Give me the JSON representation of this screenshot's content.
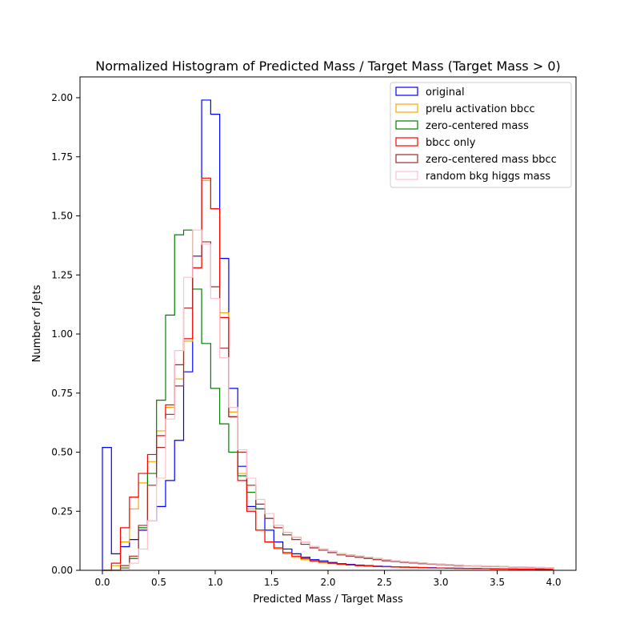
{
  "chart_data": {
    "type": "histogram",
    "title": "Normalized Histogram of Predicted Mass / Target Mass (Target Mass > 0)",
    "xlabel": "Predicted Mass / Target Mass",
    "ylabel": "Number of Jets",
    "xlim": [
      -0.18,
      4.2
    ],
    "ylim": [
      0,
      2.09
    ],
    "xticks": [
      "0.0",
      "0.5",
      "1.0",
      "1.5",
      "2.0",
      "2.5",
      "3.0",
      "3.5",
      "4.0"
    ],
    "yticks": [
      "0.00",
      "0.25",
      "0.50",
      "0.75",
      "1.00",
      "1.25",
      "1.50",
      "1.75",
      "2.00"
    ],
    "bin_edges_range": [
      0,
      4
    ],
    "bin_width": 0.08,
    "legend_position": "top-right",
    "grid": false,
    "series": [
      {
        "name": "original",
        "color": "#0000ff",
        "values": [
          0.52,
          0.07,
          0.1,
          0.13,
          0.17,
          0.21,
          0.27,
          0.38,
          0.55,
          0.84,
          1.33,
          1.99,
          1.93,
          1.32,
          0.77,
          0.44,
          0.27,
          0.26,
          0.17,
          0.12,
          0.09,
          0.07,
          0.055,
          0.045,
          0.04,
          0.033,
          0.028,
          0.025,
          0.022,
          0.02,
          0.018,
          0.016,
          0.015,
          0.014,
          0.013,
          0.012,
          0.011,
          0.01,
          0.01,
          0.009,
          0.008,
          0.008,
          0.007,
          0.007,
          0.006,
          0.006,
          0.005,
          0.005,
          0.005,
          0.004
        ]
      },
      {
        "name": "prelu activation bbcc",
        "color": "#ffa500",
        "values": [
          0.0,
          0.02,
          0.12,
          0.26,
          0.37,
          0.46,
          0.59,
          0.69,
          0.81,
          0.97,
          1.28,
          1.65,
          1.53,
          1.09,
          0.67,
          0.41,
          0.26,
          0.17,
          0.12,
          0.09,
          0.07,
          0.055,
          0.045,
          0.038,
          0.032,
          0.028,
          0.025,
          0.022,
          0.02,
          0.018,
          0.016,
          0.015,
          0.014,
          0.013,
          0.012,
          0.011,
          0.01,
          0.01,
          0.009,
          0.008,
          0.008,
          0.007,
          0.007,
          0.006,
          0.006,
          0.005,
          0.005,
          0.005,
          0.004,
          0.004
        ]
      },
      {
        "name": "zero-centered mass",
        "color": "#008000",
        "values": [
          0.0,
          0.0,
          0.01,
          0.05,
          0.18,
          0.41,
          0.72,
          1.08,
          1.42,
          1.44,
          1.19,
          0.96,
          0.77,
          0.62,
          0.5,
          0.4,
          0.33,
          0.26,
          0.22,
          0.19,
          0.16,
          0.14,
          0.12,
          0.1,
          0.09,
          0.08,
          0.07,
          0.065,
          0.06,
          0.055,
          0.05,
          0.045,
          0.04,
          0.037,
          0.034,
          0.031,
          0.028,
          0.026,
          0.024,
          0.022,
          0.02,
          0.019,
          0.018,
          0.017,
          0.016,
          0.015,
          0.014,
          0.013,
          0.012,
          0.011
        ]
      },
      {
        "name": "bbcc only",
        "color": "#ff0000",
        "values": [
          0.0,
          0.03,
          0.18,
          0.31,
          0.41,
          0.49,
          0.57,
          0.7,
          0.87,
          0.98,
          1.28,
          1.66,
          1.53,
          1.07,
          0.65,
          0.38,
          0.25,
          0.17,
          0.12,
          0.095,
          0.075,
          0.06,
          0.05,
          0.04,
          0.035,
          0.03,
          0.026,
          0.023,
          0.02,
          0.018,
          0.016,
          0.015,
          0.014,
          0.013,
          0.012,
          0.011,
          0.01,
          0.01,
          0.009,
          0.008,
          0.008,
          0.007,
          0.007,
          0.006,
          0.006,
          0.005,
          0.005,
          0.005,
          0.004,
          0.004
        ]
      },
      {
        "name": "zero-centered mass bbcc",
        "color": "#a52a2a",
        "values": [
          0.0,
          0.0,
          0.02,
          0.06,
          0.19,
          0.36,
          0.52,
          0.66,
          0.78,
          1.11,
          1.33,
          1.39,
          1.2,
          0.94,
          0.65,
          0.5,
          0.36,
          0.28,
          0.22,
          0.18,
          0.15,
          0.13,
          0.11,
          0.095,
          0.085,
          0.075,
          0.065,
          0.06,
          0.055,
          0.05,
          0.045,
          0.04,
          0.037,
          0.034,
          0.031,
          0.028,
          0.026,
          0.024,
          0.022,
          0.02,
          0.019,
          0.018,
          0.017,
          0.016,
          0.015,
          0.014,
          0.013,
          0.012,
          0.011,
          0.01
        ]
      },
      {
        "name": "random bkg higgs mass",
        "color": "#ffc0cb",
        "values": [
          0.0,
          0.0,
          0.0,
          0.03,
          0.09,
          0.21,
          0.39,
          0.64,
          0.93,
          1.24,
          1.44,
          1.38,
          1.15,
          0.9,
          0.69,
          0.51,
          0.39,
          0.3,
          0.24,
          0.19,
          0.16,
          0.14,
          0.12,
          0.1,
          0.09,
          0.08,
          0.07,
          0.065,
          0.06,
          0.055,
          0.05,
          0.045,
          0.04,
          0.037,
          0.034,
          0.031,
          0.028,
          0.026,
          0.024,
          0.022,
          0.02,
          0.019,
          0.018,
          0.017,
          0.016,
          0.015,
          0.014,
          0.013,
          0.012,
          0.011
        ]
      }
    ]
  }
}
